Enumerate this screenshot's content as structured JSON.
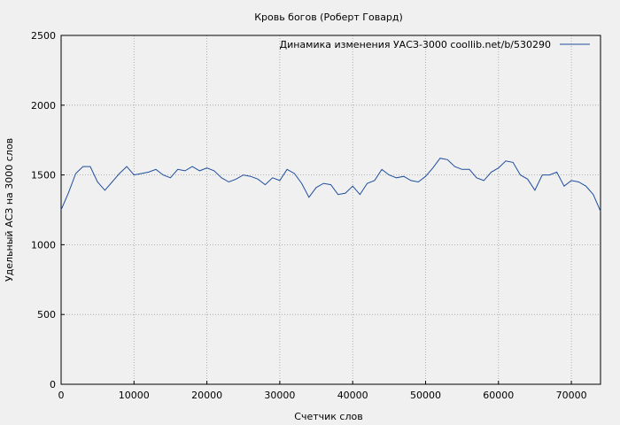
{
  "chart_data": {
    "type": "line",
    "title": "Кровь богов (Роберт Говард)",
    "xlabel": "Счетчик слов",
    "ylabel": "Удельный АСЗ на 3000 слов",
    "xlim": [
      0,
      74000
    ],
    "ylim": [
      0,
      2500
    ],
    "xticks": [
      0,
      10000,
      20000,
      30000,
      40000,
      50000,
      60000,
      70000
    ],
    "yticks": [
      0,
      500,
      1000,
      1500,
      2000,
      2500
    ],
    "grid": true,
    "legend_position": "top-right",
    "series": [
      {
        "name": "Динамика изменения УАСЗ-3000  coollib.net/b/530290",
        "color": "#1f4e9c",
        "x": [
          0,
          1000,
          2000,
          3000,
          4000,
          5000,
          6000,
          7000,
          8000,
          9000,
          10000,
          11000,
          12000,
          13000,
          14000,
          15000,
          16000,
          17000,
          18000,
          19000,
          20000,
          21000,
          22000,
          23000,
          24000,
          25000,
          26000,
          27000,
          28000,
          29000,
          30000,
          31000,
          32000,
          33000,
          34000,
          35000,
          36000,
          37000,
          38000,
          39000,
          40000,
          41000,
          42000,
          43000,
          44000,
          45000,
          46000,
          47000,
          48000,
          49000,
          50000,
          51000,
          52000,
          53000,
          54000,
          55000,
          56000,
          57000,
          58000,
          59000,
          60000,
          61000,
          62000,
          63000,
          64000,
          65000,
          66000,
          67000,
          68000,
          69000,
          70000,
          71000,
          72000,
          73000,
          74000
        ],
        "values": [
          1250,
          1370,
          1510,
          1560,
          1560,
          1450,
          1390,
          1450,
          1510,
          1560,
          1500,
          1510,
          1520,
          1540,
          1500,
          1480,
          1540,
          1530,
          1560,
          1530,
          1550,
          1530,
          1480,
          1450,
          1470,
          1500,
          1490,
          1470,
          1430,
          1480,
          1460,
          1540,
          1510,
          1440,
          1340,
          1410,
          1440,
          1430,
          1360,
          1370,
          1420,
          1360,
          1440,
          1460,
          1540,
          1500,
          1480,
          1490,
          1460,
          1450,
          1490,
          1550,
          1620,
          1610,
          1560,
          1540,
          1540,
          1480,
          1460,
          1520,
          1550,
          1600,
          1590,
          1500,
          1470,
          1390,
          1500,
          1500,
          1520,
          1420,
          1460,
          1450,
          1420,
          1360,
          1240
        ]
      }
    ]
  }
}
